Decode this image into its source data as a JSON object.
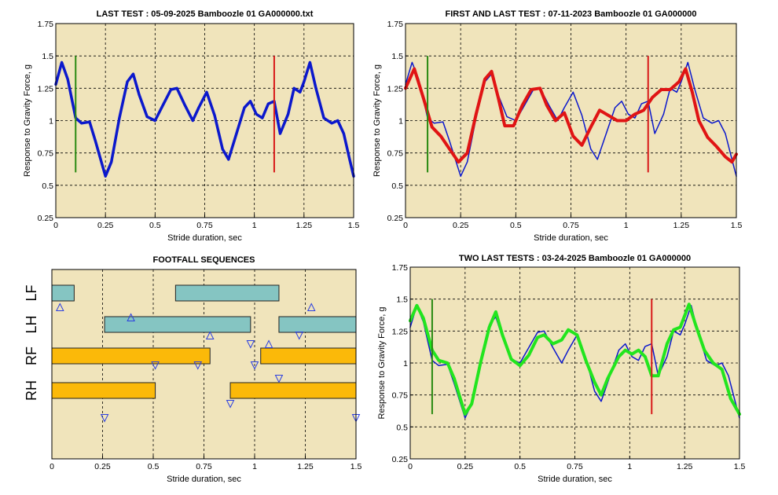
{
  "colors": {
    "plot_bg": "#f0e4bb",
    "grid": "#000000",
    "blue": "#0b18cc",
    "red": "#e01414",
    "green_trace": "#22e51e",
    "green_marker": "#2a8a12",
    "red_marker": "#d81a1a",
    "teal_bar": "#85c5c2",
    "orange_bar": "#fbb909",
    "triangle": "#2b3fe0"
  },
  "chart_data": [
    {
      "id": "last-test",
      "type": "line",
      "title": "LAST TEST : 05-09-2025 Bamboozle 01 GA000000.txt",
      "xlabel": "Stride duration, sec",
      "ylabel": "Response to Gravity Force, g",
      "xlim": [
        0,
        1.5
      ],
      "ylim": [
        0.25,
        1.75
      ],
      "xticks": [
        "0",
        "0.25",
        "0.5",
        "0.75",
        "1",
        "1.25",
        "1.5"
      ],
      "yticks": [
        "0.25",
        "0.5",
        "0.75",
        "1",
        "1.25",
        "1.5",
        "1.75"
      ],
      "grid": true,
      "markers": [
        {
          "x": 0.1,
          "y_from": 0.6,
          "y_to": 1.5,
          "color": "green"
        },
        {
          "x": 1.1,
          "y_from": 0.6,
          "y_to": 1.5,
          "color": "red"
        }
      ],
      "series": [
        {
          "color": "blue",
          "width": 3.5,
          "x": [
            0,
            0.03,
            0.06,
            0.1,
            0.13,
            0.17,
            0.2,
            0.25,
            0.28,
            0.32,
            0.36,
            0.39,
            0.42,
            0.46,
            0.5,
            0.54,
            0.58,
            0.61,
            0.65,
            0.69,
            0.72,
            0.76,
            0.8,
            0.84,
            0.87,
            0.9,
            0.95,
            0.98,
            1.01,
            1.04,
            1.07,
            1.1,
            1.13,
            1.17,
            1.2,
            1.23,
            1.25,
            1.28,
            1.31,
            1.35,
            1.39,
            1.42,
            1.45,
            1.48,
            1.5
          ],
          "y": [
            1.28,
            1.45,
            1.32,
            1.02,
            0.98,
            0.99,
            0.84,
            0.57,
            0.68,
            1.02,
            1.3,
            1.36,
            1.2,
            1.03,
            1.0,
            1.12,
            1.24,
            1.25,
            1.12,
            1.0,
            1.1,
            1.22,
            1.04,
            0.78,
            0.7,
            0.85,
            1.1,
            1.15,
            1.05,
            1.02,
            1.13,
            1.15,
            0.9,
            1.05,
            1.25,
            1.22,
            1.3,
            1.45,
            1.25,
            1.02,
            0.98,
            1.0,
            0.9,
            0.7,
            0.57
          ]
        }
      ]
    },
    {
      "id": "first-and-last-test",
      "type": "line",
      "title": "FIRST AND LAST TEST : 07-11-2023 Bamboozle 01 GA000000",
      "xlabel": "Stride duration, sec",
      "ylabel": "Response to Gravity Force, g",
      "xlim": [
        0,
        1.5
      ],
      "ylim": [
        0.25,
        1.75
      ],
      "xticks": [
        "0",
        "0.25",
        "0.5",
        "0.75",
        "1",
        "1.25",
        "1.5"
      ],
      "yticks": [
        "0.25",
        "0.5",
        "0.75",
        "1",
        "1.25",
        "1.5",
        "1.75"
      ],
      "grid": true,
      "markers": [
        {
          "x": 0.1,
          "y_from": 0.6,
          "y_to": 1.5,
          "color": "green"
        },
        {
          "x": 1.1,
          "y_from": 0.6,
          "y_to": 1.5,
          "color": "red"
        }
      ],
      "series": [
        {
          "color": "blue",
          "width": 1.5,
          "x": [
            0,
            0.03,
            0.06,
            0.1,
            0.13,
            0.17,
            0.2,
            0.25,
            0.28,
            0.32,
            0.36,
            0.39,
            0.42,
            0.46,
            0.5,
            0.54,
            0.58,
            0.61,
            0.65,
            0.69,
            0.72,
            0.76,
            0.8,
            0.84,
            0.87,
            0.9,
            0.95,
            0.98,
            1.01,
            1.04,
            1.07,
            1.1,
            1.13,
            1.17,
            1.2,
            1.23,
            1.25,
            1.28,
            1.31,
            1.35,
            1.39,
            1.42,
            1.45,
            1.48,
            1.5
          ],
          "y": [
            1.28,
            1.45,
            1.32,
            1.02,
            0.98,
            0.99,
            0.84,
            0.57,
            0.68,
            1.02,
            1.3,
            1.36,
            1.2,
            1.03,
            1.0,
            1.12,
            1.24,
            1.25,
            1.12,
            1.0,
            1.1,
            1.22,
            1.04,
            0.78,
            0.7,
            0.85,
            1.1,
            1.15,
            1.05,
            1.02,
            1.13,
            1.15,
            0.9,
            1.05,
            1.25,
            1.22,
            1.3,
            1.45,
            1.25,
            1.02,
            0.98,
            1.0,
            0.9,
            0.7,
            0.57
          ]
        },
        {
          "color": "red",
          "width": 4,
          "x": [
            0,
            0.04,
            0.08,
            0.12,
            0.16,
            0.2,
            0.24,
            0.28,
            0.32,
            0.36,
            0.39,
            0.42,
            0.45,
            0.49,
            0.53,
            0.57,
            0.61,
            0.64,
            0.68,
            0.72,
            0.76,
            0.8,
            0.84,
            0.88,
            0.92,
            0.96,
            1.0,
            1.04,
            1.08,
            1.12,
            1.16,
            1.2,
            1.24,
            1.27,
            1.3,
            1.33,
            1.37,
            1.41,
            1.45,
            1.48,
            1.5
          ],
          "y": [
            1.25,
            1.4,
            1.18,
            0.95,
            0.88,
            0.78,
            0.68,
            0.75,
            1.05,
            1.32,
            1.38,
            1.18,
            0.96,
            0.96,
            1.12,
            1.24,
            1.25,
            1.12,
            1.0,
            1.06,
            0.88,
            0.81,
            0.95,
            1.08,
            1.04,
            1.0,
            1.0,
            1.05,
            1.08,
            1.18,
            1.24,
            1.24,
            1.3,
            1.4,
            1.22,
            1.0,
            0.87,
            0.8,
            0.72,
            0.68,
            0.74
          ]
        }
      ]
    },
    {
      "id": "two-last-tests",
      "type": "line",
      "title": "TWO LAST TESTS : 03-24-2025 Bamboozle 01 GA000000",
      "xlabel": "Stride duration, sec",
      "ylabel": "Response to Gravity Force, g",
      "xlim": [
        0,
        1.5
      ],
      "ylim": [
        0.25,
        1.75
      ],
      "xticks": [
        "0",
        "0.25",
        "0.5",
        "0.75",
        "1",
        "1.25",
        "1.5"
      ],
      "yticks": [
        "0.25",
        "0.5",
        "0.75",
        "1",
        "1.25",
        "1.5",
        "1.75"
      ],
      "grid": true,
      "markers": [
        {
          "x": 0.1,
          "y_from": 0.6,
          "y_to": 1.5,
          "color": "green"
        },
        {
          "x": 1.1,
          "y_from": 0.6,
          "y_to": 1.5,
          "color": "red"
        }
      ],
      "series": [
        {
          "color": "blue",
          "width": 1.5,
          "x": [
            0,
            0.03,
            0.06,
            0.1,
            0.13,
            0.17,
            0.2,
            0.25,
            0.28,
            0.32,
            0.36,
            0.39,
            0.42,
            0.46,
            0.5,
            0.54,
            0.58,
            0.61,
            0.65,
            0.69,
            0.72,
            0.76,
            0.8,
            0.84,
            0.87,
            0.9,
            0.95,
            0.98,
            1.01,
            1.04,
            1.07,
            1.1,
            1.13,
            1.17,
            1.2,
            1.23,
            1.25,
            1.28,
            1.31,
            1.35,
            1.39,
            1.42,
            1.45,
            1.48,
            1.5
          ],
          "y": [
            1.28,
            1.45,
            1.32,
            1.02,
            0.98,
            0.99,
            0.84,
            0.57,
            0.68,
            1.02,
            1.3,
            1.36,
            1.2,
            1.03,
            1.0,
            1.12,
            1.24,
            1.25,
            1.12,
            1.0,
            1.1,
            1.22,
            1.04,
            0.78,
            0.7,
            0.85,
            1.1,
            1.15,
            1.05,
            1.02,
            1.13,
            1.15,
            0.9,
            1.05,
            1.25,
            1.22,
            1.3,
            1.45,
            1.25,
            1.02,
            0.98,
            1.0,
            0.9,
            0.7,
            0.57
          ]
        },
        {
          "color": "green_trace",
          "width": 4,
          "x": [
            0,
            0.03,
            0.06,
            0.1,
            0.13,
            0.17,
            0.2,
            0.25,
            0.28,
            0.32,
            0.36,
            0.39,
            0.42,
            0.46,
            0.5,
            0.54,
            0.58,
            0.61,
            0.65,
            0.69,
            0.72,
            0.76,
            0.8,
            0.84,
            0.87,
            0.9,
            0.95,
            0.98,
            1.01,
            1.04,
            1.07,
            1.1,
            1.13,
            1.17,
            1.2,
            1.23,
            1.27,
            1.3,
            1.34,
            1.38,
            1.42,
            1.46,
            1.5
          ],
          "y": [
            1.33,
            1.45,
            1.35,
            1.1,
            1.02,
            1.0,
            0.88,
            0.6,
            0.68,
            1.0,
            1.28,
            1.4,
            1.22,
            1.03,
            0.98,
            1.06,
            1.2,
            1.22,
            1.15,
            1.18,
            1.26,
            1.22,
            1.02,
            0.85,
            0.75,
            0.88,
            1.05,
            1.1,
            1.07,
            1.1,
            1.05,
            0.9,
            0.9,
            1.15,
            1.26,
            1.28,
            1.46,
            1.3,
            1.1,
            1.0,
            0.95,
            0.72,
            0.6
          ]
        }
      ]
    },
    {
      "id": "footfall-sequences",
      "type": "gantt",
      "title": "FOOTFALL SEQUENCES",
      "xlabel": "Stride duration, sec",
      "xlim": [
        0,
        1.5
      ],
      "xticks": [
        "0",
        "0.25",
        "0.5",
        "0.75",
        "1",
        "1.25",
        "1.5"
      ],
      "grid": true,
      "rows": [
        {
          "label": "LF",
          "color": "teal_bar",
          "segments": [
            [
              0,
              0.11
            ],
            [
              0.61,
              1.12
            ]
          ]
        },
        {
          "label": "LH",
          "color": "teal_bar",
          "segments": [
            [
              0.26,
              0.98
            ],
            [
              1.12,
              1.5
            ]
          ]
        },
        {
          "label": "RF",
          "color": "orange_bar",
          "segments": [
            [
              0,
              0.78
            ],
            [
              1.03,
              1.5
            ]
          ]
        },
        {
          "label": "RH",
          "color": "orange_bar",
          "segments": [
            [
              0,
              0.51
            ],
            [
              0.88,
              1.5
            ]
          ]
        }
      ],
      "triangles": [
        {
          "dir": "up",
          "x": 0.04,
          "row": "LF"
        },
        {
          "dir": "up",
          "x": 1.28,
          "row": "LF"
        },
        {
          "dir": "up",
          "x": 0.39,
          "row": "LH-top"
        },
        {
          "dir": "up",
          "x": 0.78,
          "row": "LH"
        },
        {
          "dir": "up",
          "x": 1.07,
          "row": "LH-low"
        },
        {
          "dir": "down",
          "x": 0.98,
          "row": "LH-low"
        },
        {
          "dir": "down",
          "x": 1.22,
          "row": "LH"
        },
        {
          "dir": "down",
          "x": 0.51,
          "row": "RF-low"
        },
        {
          "dir": "down",
          "x": 0.72,
          "row": "RF-low"
        },
        {
          "dir": "down",
          "x": 1.0,
          "row": "RF-low"
        },
        {
          "dir": "down",
          "x": 1.12,
          "row": "RF"
        },
        {
          "dir": "down",
          "x": 0.88,
          "row": "RH"
        },
        {
          "dir": "down",
          "x": 0.26,
          "row": "RH-low"
        },
        {
          "dir": "down",
          "x": 1.5,
          "row": "RH-low"
        }
      ]
    }
  ]
}
